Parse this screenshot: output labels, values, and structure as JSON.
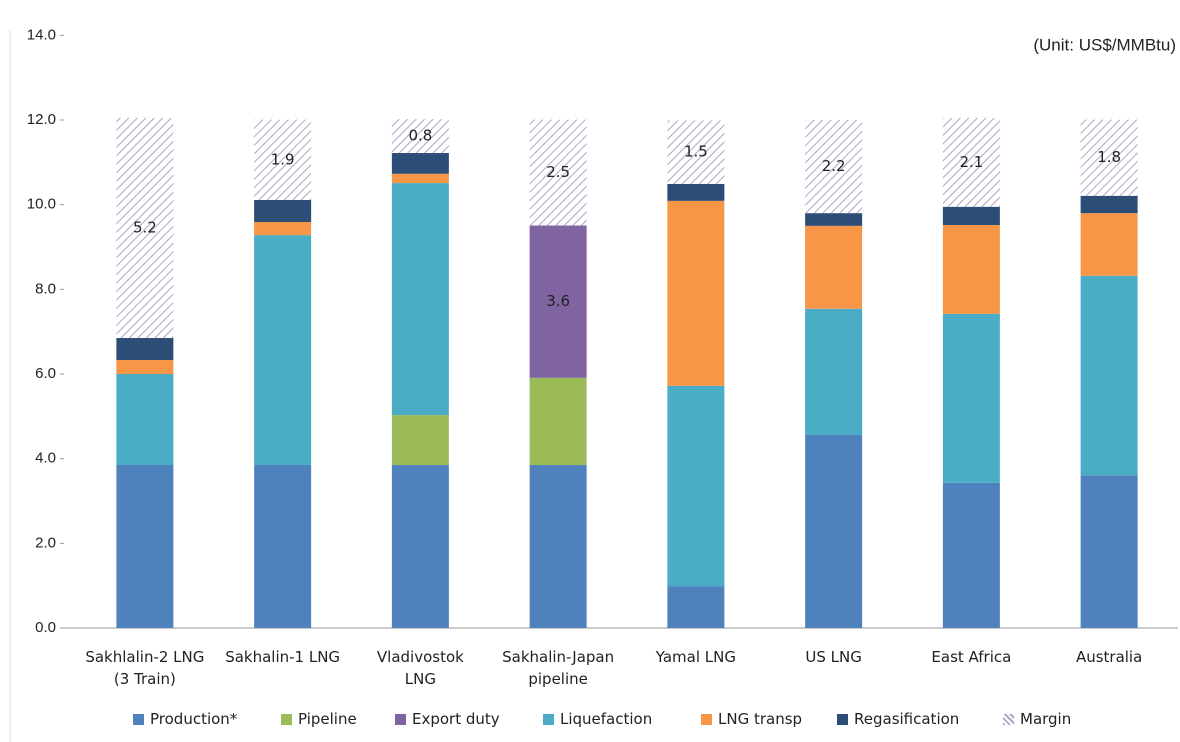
{
  "chart_data": {
    "type": "stacked_bar",
    "note": "(Unit: US$/MMBtu)",
    "categories": [
      "Sakhlalin-2 LNG\n(3 Train)",
      "Sakhalin-1 LNG",
      "Vladivostok\nLNG",
      "Sakhalin-Japan\npipeline",
      "Yamal LNG",
      "US LNG",
      "East Africa",
      "Australia"
    ],
    "series": [
      {
        "name": "Production*",
        "color": "#4f81bd",
        "values": [
          3.85,
          3.85,
          3.85,
          3.85,
          0.99,
          4.56,
          3.43,
          3.61
        ]
      },
      {
        "name": "Pipeline",
        "color": "#9bbb59",
        "values": [
          null,
          null,
          1.18,
          2.06,
          null,
          null,
          null,
          null
        ]
      },
      {
        "name": "Export duty",
        "color": "#8064a2",
        "labeled": true,
        "values": [
          null,
          null,
          null,
          3.6,
          null,
          null,
          null,
          null
        ]
      },
      {
        "name": "Liquefaction",
        "color": "#4bacc6",
        "values": [
          2.15,
          5.43,
          5.48,
          null,
          4.73,
          2.98,
          3.99,
          4.71
        ]
      },
      {
        "name": "LNG transp",
        "color": "#f79646",
        "values": [
          0.33,
          0.31,
          0.22,
          null,
          4.37,
          1.96,
          2.1,
          1.48
        ]
      },
      {
        "name": "Regasification",
        "color": "#2c4d75",
        "values": [
          0.52,
          0.52,
          0.49,
          null,
          0.4,
          0.3,
          0.43,
          0.41
        ]
      },
      {
        "name": "Margin",
        "color": "#b3a2c7",
        "pattern": "hatch",
        "labeled": true,
        "values": [
          5.2,
          1.9,
          0.8,
          2.5,
          1.5,
          2.2,
          2.1,
          1.8
        ]
      }
    ],
    "ylim": [
      0,
      14
    ],
    "yticks": [
      {
        "value": 0,
        "label": "0.0"
      },
      {
        "value": 2,
        "label": "2.0"
      },
      {
        "value": 4,
        "label": "4.0"
      },
      {
        "value": 6,
        "label": "6.0"
      },
      {
        "value": 8,
        "label": "8.0"
      },
      {
        "value": 10,
        "label": "10.0"
      },
      {
        "value": 12,
        "label": "12.0"
      },
      {
        "value": 14,
        "label": "14.0"
      }
    ],
    "legend": "bottom"
  }
}
